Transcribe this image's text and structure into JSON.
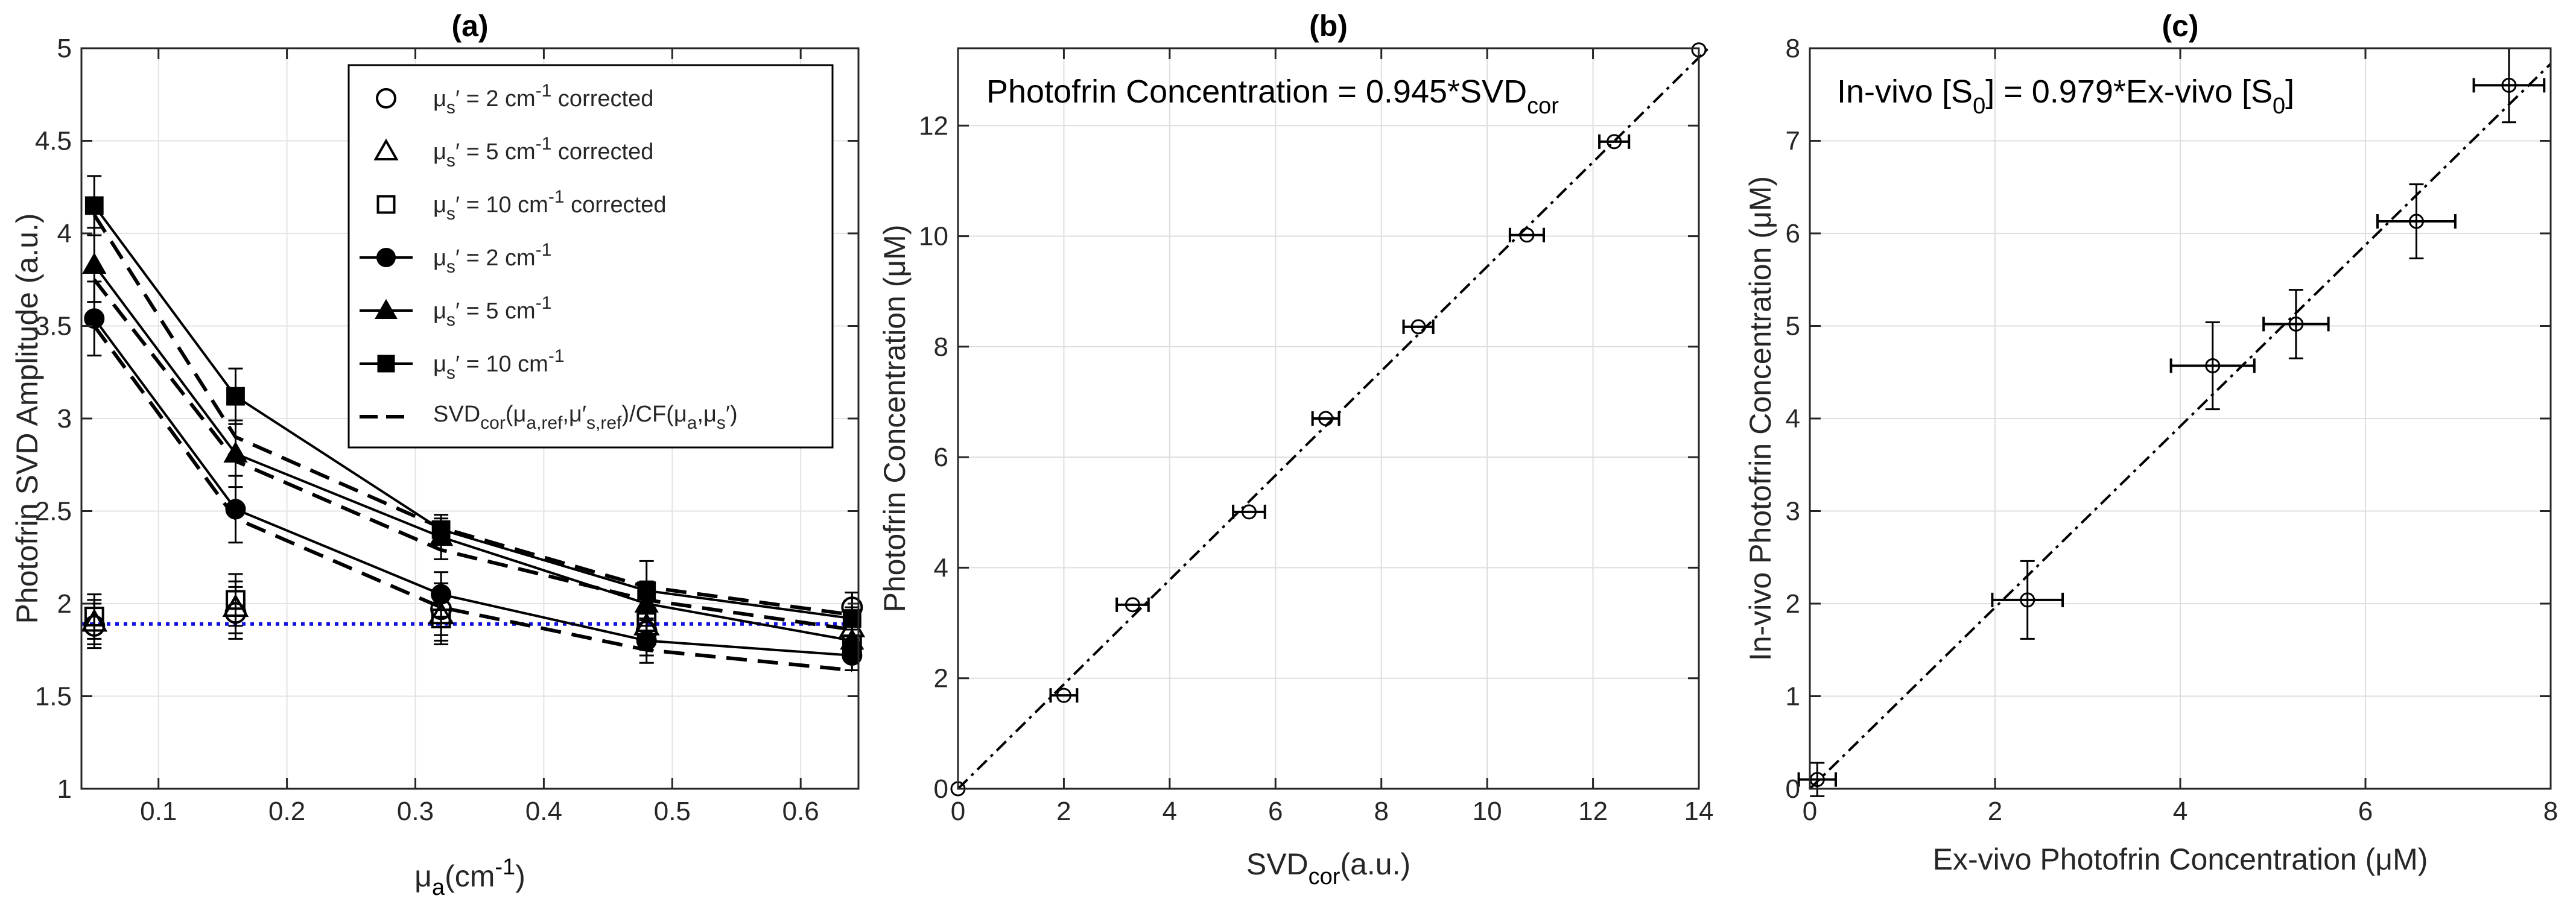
{
  "figure": "Photofrin SVD amplitude and concentration figure",
  "chart_data": [
    {
      "panel": "a",
      "type": "line",
      "title": "(a)",
      "xlabel": "μa(cm-1)",
      "xlabel_main": "μ",
      "xlabel_sub": "a",
      "xlabel_rest": "(cm",
      "xlabel_sup": "-1",
      "xlabel_close": ")",
      "ylabel": "Photofrin SVD Amplitude (a.u.)",
      "xlim": [
        0.04,
        0.645
      ],
      "ylim": [
        1,
        5
      ],
      "xticks": [
        0.1,
        0.2,
        0.3,
        0.4,
        0.5,
        0.6
      ],
      "xtick_labels": [
        "0.1",
        "0.2",
        "0.3",
        "0.4",
        "0.5",
        "0.6"
      ],
      "yticks": [
        1,
        1.5,
        2,
        2.5,
        3,
        3.5,
        4,
        4.5,
        5
      ],
      "ytick_labels": [
        "1",
        "1.5",
        "2",
        "2.5",
        "3",
        "3.5",
        "4",
        "4.5",
        "5"
      ],
      "grid": true,
      "x": [
        0.05,
        0.16,
        0.32,
        0.48,
        0.64
      ],
      "reference_line": {
        "y": 1.89,
        "color": "#1010e0",
        "style": "dotted"
      },
      "series": [
        {
          "name": "μs′ = 2 cm-1 corrected",
          "marker": "circle-open",
          "line": "none",
          "values": [
            1.88,
            1.95,
            1.97,
            1.85,
            1.98
          ],
          "errors": [
            0.12,
            0.14,
            0.14,
            0.13,
            0.08
          ]
        },
        {
          "name": "μs′ = 5 cm-1 corrected",
          "marker": "triangle-open",
          "line": "none",
          "values": [
            1.9,
            1.98,
            1.94,
            1.88,
            1.87
          ],
          "errors": [
            0.12,
            0.14,
            0.14,
            0.13,
            0.08
          ]
        },
        {
          "name": "μs′ = 10 cm-1 corrected",
          "marker": "square-open",
          "line": "none",
          "values": [
            1.93,
            2.02,
            1.92,
            1.9,
            1.78
          ],
          "errors": [
            0.12,
            0.14,
            0.14,
            0.13,
            0.08
          ]
        },
        {
          "name": "μs′ = 2 cm-1",
          "marker": "circle-filled",
          "line": "solid",
          "values": [
            3.54,
            2.51,
            2.05,
            1.8,
            1.72
          ],
          "errors": [
            0.2,
            0.18,
            0.12,
            0.12,
            0.08
          ]
        },
        {
          "name": "μs′ = 5 cm-1",
          "marker": "triangle-filled",
          "line": "solid",
          "values": [
            3.83,
            2.81,
            2.36,
            2.0,
            1.8
          ],
          "errors": [
            0.2,
            0.18,
            0.12,
            0.12,
            0.08
          ]
        },
        {
          "name": "μs′ = 10 cm-1",
          "marker": "square-filled",
          "line": "solid",
          "values": [
            4.15,
            3.12,
            2.4,
            2.07,
            1.92
          ],
          "errors": [
            0.16,
            0.15,
            0.06,
            0.16,
            0.06
          ]
        },
        {
          "name": "SVDcor(μa,ref,μ′s,ref)/CF(μa,μs′) [2]",
          "marker": "none",
          "line": "dashed",
          "values": [
            3.5,
            2.46,
            1.98,
            1.75,
            1.64
          ]
        },
        {
          "name": "SVDcor(μa,ref,μ′s,ref)/CF(μa,μs′) [5]",
          "marker": "none",
          "line": "dashed",
          "values": [
            3.75,
            2.77,
            2.29,
            2.02,
            1.86
          ]
        },
        {
          "name": "SVDcor(μa,ref,μ′s,ref)/CF(μa,μs′) [10]",
          "marker": "none",
          "line": "dashed",
          "values": [
            4.1,
            2.9,
            2.41,
            2.09,
            1.94
          ]
        }
      ],
      "legend": {
        "placement": "top-right",
        "entries": [
          {
            "sym": "circle-open",
            "pre": "μ",
            "sub": "s",
            "mid": "′ = 2 cm",
            "sup": "-1",
            "post": " corrected"
          },
          {
            "sym": "triangle-open",
            "pre": "μ",
            "sub": "s",
            "mid": "′ = 5 cm",
            "sup": "-1",
            "post": " corrected"
          },
          {
            "sym": "square-open",
            "pre": "μ",
            "sub": "s",
            "mid": "′ = 10 cm",
            "sup": "-1",
            "post": " corrected"
          },
          {
            "sym": "circle-filled",
            "pre": "μ",
            "sub": "s",
            "mid": "′ = 2 cm",
            "sup": "-1",
            "post": ""
          },
          {
            "sym": "triangle-filled",
            "pre": "μ",
            "sub": "s",
            "mid": "′ = 5 cm",
            "sup": "-1",
            "post": ""
          },
          {
            "sym": "square-filled",
            "pre": "μ",
            "sub": "s",
            "mid": "′ = 10 cm",
            "sup": "-1",
            "post": ""
          }
        ],
        "formula_entry": {
          "p1": "SVD",
          "s1": "cor",
          "p2": "(μ",
          "s2": "a,ref",
          "p3": ",μ′",
          "s3": "s,ref",
          "p4": ")/CF(μ",
          "s4": "a",
          "p5": ",μ",
          "s5": "s",
          "p6": "′)"
        }
      }
    },
    {
      "panel": "b",
      "type": "scatter",
      "title": "(b)",
      "xlabel": "SVDcor(a.u.)",
      "xlabel_main": "SVD",
      "xlabel_sub": "cor",
      "xlabel_rest": "(a.u.)",
      "ylabel": "Photofrin Concentration (μM)",
      "xlim": [
        0,
        14
      ],
      "ylim": [
        0,
        13.4
      ],
      "xticks": [
        0,
        2,
        4,
        6,
        8,
        10,
        12,
        14
      ],
      "xtick_labels": [
        "0",
        "2",
        "4",
        "6",
        "8",
        "10",
        "12",
        "14"
      ],
      "yticks": [
        0,
        2,
        4,
        6,
        8,
        10,
        12
      ],
      "ytick_labels": [
        "0",
        "2",
        "4",
        "6",
        "8",
        "10",
        "12"
      ],
      "grid": true,
      "points": [
        {
          "x": 0,
          "y": 0,
          "xerr": 0
        },
        {
          "x": 2.0,
          "y": 1.69,
          "xerr": 0.25
        },
        {
          "x": 3.3,
          "y": 3.33,
          "xerr": 0.3
        },
        {
          "x": 5.5,
          "y": 5.01,
          "xerr": 0.3
        },
        {
          "x": 6.95,
          "y": 6.7,
          "xerr": 0.25
        },
        {
          "x": 8.7,
          "y": 8.36,
          "xerr": 0.28
        },
        {
          "x": 10.75,
          "y": 10.02,
          "xerr": 0.32
        },
        {
          "x": 12.4,
          "y": 11.71,
          "xerr": 0.28
        },
        {
          "x": 14.0,
          "y": 13.37,
          "xerr": 0
        }
      ],
      "fit": {
        "slope": 0.945,
        "x_range": [
          0,
          14.2
        ]
      },
      "annotation": {
        "p1": "Photofrin Concentration   = 0.945*SVD",
        "s1": "cor"
      }
    },
    {
      "panel": "c",
      "type": "scatter",
      "title": "(c)",
      "xlabel": "Ex-vivo Photofrin Concentration (μM)",
      "ylabel": "In-vivo Photofrin Concentration (μM)",
      "xlim": [
        0,
        8
      ],
      "ylim": [
        0,
        8
      ],
      "xticks": [
        0,
        2,
        4,
        6,
        8
      ],
      "xtick_labels": [
        "0",
        "2",
        "4",
        "6",
        "8"
      ],
      "yticks": [
        0,
        1,
        2,
        3,
        4,
        5,
        6,
        7,
        8
      ],
      "ytick_labels": [
        "0",
        "1",
        "2",
        "3",
        "4",
        "5",
        "6",
        "7",
        "8"
      ],
      "grid": true,
      "points": [
        {
          "x": 0.08,
          "y": 0.1,
          "xerr": 0.2,
          "yerr": 0.18
        },
        {
          "x": 2.35,
          "y": 2.04,
          "xerr": 0.38,
          "yerr": 0.42
        },
        {
          "x": 4.35,
          "y": 4.57,
          "xerr": 0.45,
          "yerr": 0.47
        },
        {
          "x": 5.25,
          "y": 5.02,
          "xerr": 0.35,
          "yerr": 0.37
        },
        {
          "x": 6.55,
          "y": 6.13,
          "xerr": 0.42,
          "yerr": 0.4
        },
        {
          "x": 7.55,
          "y": 7.6,
          "xerr": 0.38,
          "yerr": 0.4
        }
      ],
      "fit": {
        "slope": 0.979,
        "x_range": [
          0,
          8
        ]
      },
      "annotation": {
        "p1": "In-vivo [S",
        "s1": "0",
        "p2": "]  = 0.979*Ex-vivo [S",
        "s2": "0",
        "p3": "]"
      }
    }
  ]
}
